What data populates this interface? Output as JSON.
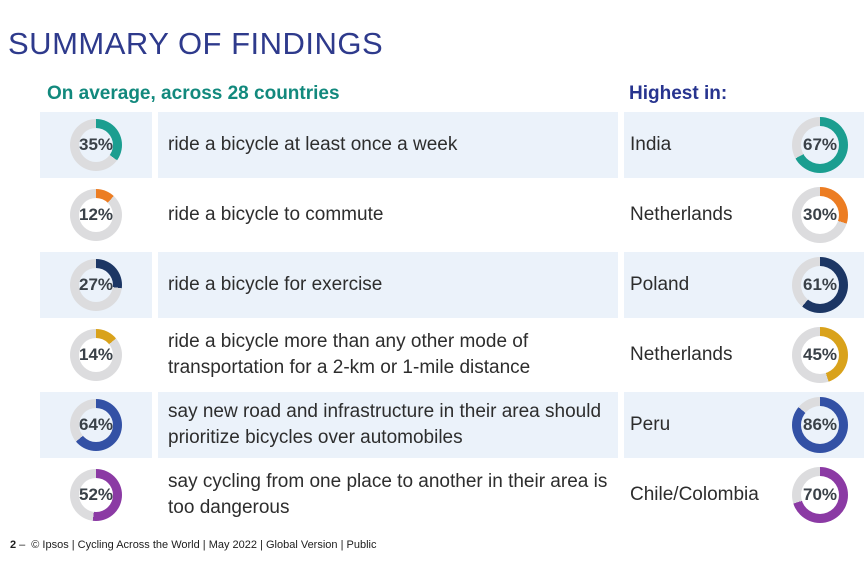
{
  "slide": {
    "title": "SUMMARY OF FINDINGS",
    "average_header": "On average, across 28 countries",
    "highest_header": "Highest in:",
    "rows": [
      {
        "average_label": "35%",
        "average_pct": 35,
        "statement": "ride a bicycle at least once a week",
        "country": "India",
        "highest_label": "67%",
        "highest_pct": 67,
        "color": "#1B9E90"
      },
      {
        "average_label": "12%",
        "average_pct": 12,
        "statement": "ride a bicycle to commute",
        "country": "Netherlands",
        "highest_label": "30%",
        "highest_pct": 30,
        "color": "#EC7D23"
      },
      {
        "average_label": "27%",
        "average_pct": 27,
        "statement": "ride a bicycle for exercise",
        "country": "Poland",
        "highest_label": "61%",
        "highest_pct": 61,
        "color": "#1C3664"
      },
      {
        "average_label": "14%",
        "average_pct": 14,
        "statement": "ride a bicycle more than any other mode of transportation for a 2-km or 1-mile distance",
        "country": "Netherlands",
        "highest_label": "45%",
        "highest_pct": 45,
        "color": "#D9A21B"
      },
      {
        "average_label": "64%",
        "average_pct": 64,
        "statement": "say new road and infrastructure in their area should prioritize bicycles over automobiles",
        "country": "Peru",
        "highest_label": "86%",
        "highest_pct": 86,
        "color": "#3351A5"
      },
      {
        "average_label": "52%",
        "average_pct": 52,
        "statement": "say cycling from one place to another in their area is too dangerous",
        "country": "Chile/Colombia",
        "highest_label": "70%",
        "highest_pct": 70,
        "color": "#8B3AA4"
      }
    ],
    "footer": {
      "page_number": "2",
      "separator": "–",
      "text": "© Ipsos | Cycling Across the World | May 2022 | Global Version | Public"
    }
  },
  "colors": {
    "title": "#2E3A8C",
    "average_header": "#12897D",
    "highest_header": "#27348F",
    "row_highlight": "#EBF2FA",
    "donut_track": "#DCDCDE",
    "percent_text": "#3A4148"
  },
  "chart_data": {
    "type": "pie",
    "subtype": "paired-donut-gauges",
    "title": "SUMMARY OF FINDINGS",
    "categories": [
      "ride a bicycle at least once a week",
      "ride a bicycle to commute",
      "ride a bicycle for exercise",
      "ride a bicycle more than any other mode of transportation for a 2-km or 1-mile distance",
      "say new road and infrastructure in their area should prioritize bicycles over automobiles",
      "say cycling from one place to another in their area is too dangerous"
    ],
    "series": [
      {
        "name": "On average, across 28 countries",
        "values": [
          35,
          12,
          27,
          14,
          64,
          52
        ]
      },
      {
        "name": "Highest in:",
        "values": [
          67,
          30,
          61,
          45,
          86,
          70
        ],
        "countries": [
          "India",
          "Netherlands",
          "Poland",
          "Netherlands",
          "Peru",
          "Chile/Colombia"
        ]
      }
    ],
    "colors": [
      "#1B9E90",
      "#EC7D23",
      "#1C3664",
      "#D9A21B",
      "#3351A5",
      "#8B3AA4"
    ],
    "value_range": [
      0,
      100
    ],
    "arc_start": "12-o'clock, clockwise"
  }
}
